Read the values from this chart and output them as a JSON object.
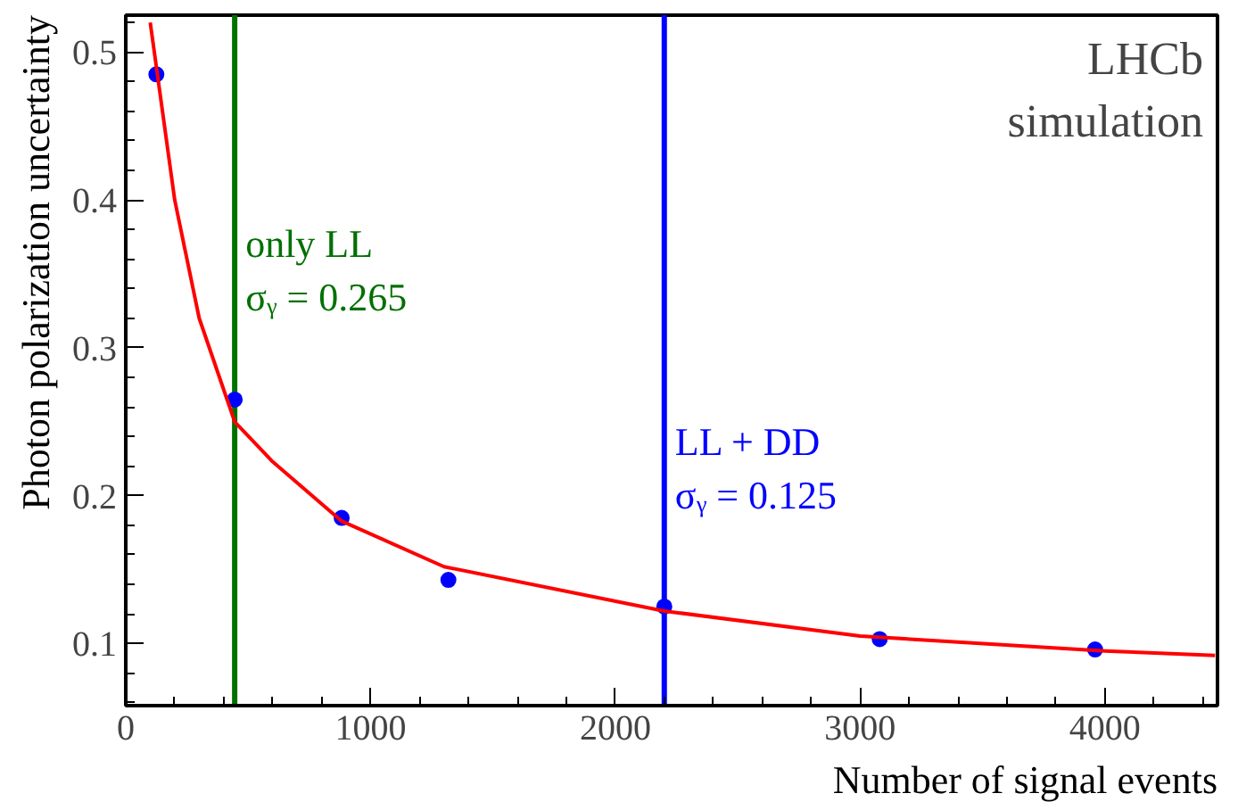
{
  "chart_data": {
    "type": "scatter",
    "xlabel": "Number of signal events",
    "ylabel": "Photon polarization uncertainty",
    "xlim": [
      0,
      4460
    ],
    "ylim": [
      0.058,
      0.525
    ],
    "xticks": [
      0,
      1000,
      2000,
      3000,
      4000
    ],
    "yticks": [
      0.1,
      0.2,
      0.3,
      0.4,
      0.5
    ],
    "grid": false,
    "series": [
      {
        "marker": "circle",
        "color": "#0000ff",
        "x": [
          125,
          445,
          882,
          1318,
          2200,
          3080,
          3960
        ],
        "values": [
          0.485,
          0.265,
          0.185,
          0.143,
          0.125,
          0.103,
          0.096
        ]
      },
      {
        "type": "line",
        "marker": "none",
        "line_style": "solid",
        "color": "#ff0000",
        "x": [
          100,
          125,
          200,
          300,
          445,
          600,
          880,
          1300,
          2200,
          3000,
          4000,
          4450
        ],
        "values": [
          0.52,
          0.49,
          0.4,
          0.32,
          0.25,
          0.223,
          0.183,
          0.152,
          0.122,
          0.105,
          0.095,
          0.092
        ]
      }
    ],
    "ref_lines": [
      {
        "axis": "x",
        "value": 445,
        "color": "#007000"
      },
      {
        "axis": "x",
        "value": 2200,
        "color": "#0000ff"
      }
    ],
    "annotations": [
      {
        "text": "only LL\nσᵧ = 0.265",
        "x": 445,
        "y": 0.265
      },
      {
        "text": "LL + DD\nσᵧ = 0.125",
        "x": 2200,
        "y": 0.125
      },
      "LHCb\nsimulation"
    ]
  }
}
